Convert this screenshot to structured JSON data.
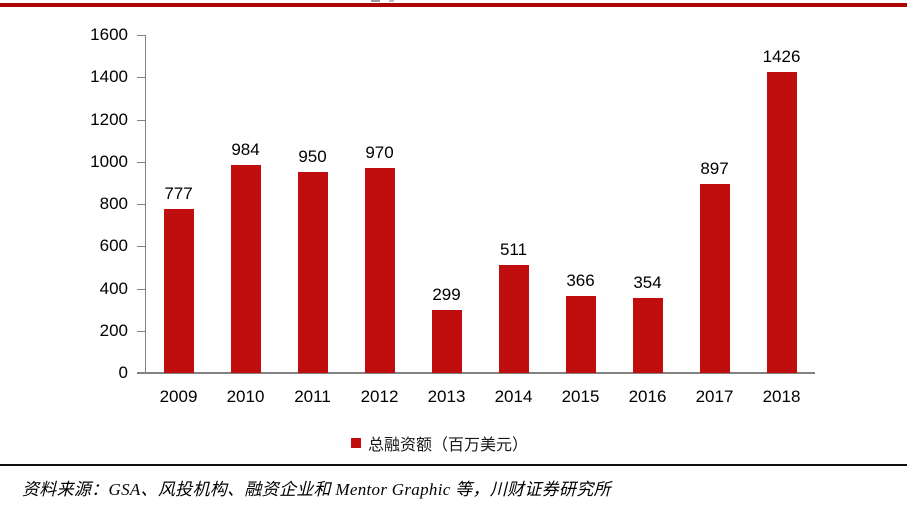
{
  "colors": {
    "bar": "#c00d0d",
    "top_rule": "#ad0303",
    "axis": "#828282",
    "footer_rule": "#101010"
  },
  "chart_data": {
    "type": "bar",
    "title": "",
    "categories": [
      "2009",
      "2010",
      "2011",
      "2012",
      "2013",
      "2014",
      "2015",
      "2016",
      "2017",
      "2018"
    ],
    "series": [
      {
        "name": "总融资额（百万美元）",
        "values": [
          777,
          984,
          950,
          970,
          299,
          511,
          366,
          354,
          897,
          1426
        ]
      }
    ],
    "xlabel": "",
    "ylabel": "",
    "ylim": [
      0,
      1600
    ],
    "ytick_step": 200,
    "yticks": [
      0,
      200,
      400,
      600,
      800,
      1000,
      1200,
      1400,
      1600
    ],
    "grid": false,
    "legend_position": "bottom",
    "data_labels": true
  },
  "legend": {
    "label": "总融资额（百万美元）"
  },
  "footer": {
    "source": "资料来源：GSA、风投机构、融资企业和 Mentor Graphic 等，川财证券研究所"
  }
}
